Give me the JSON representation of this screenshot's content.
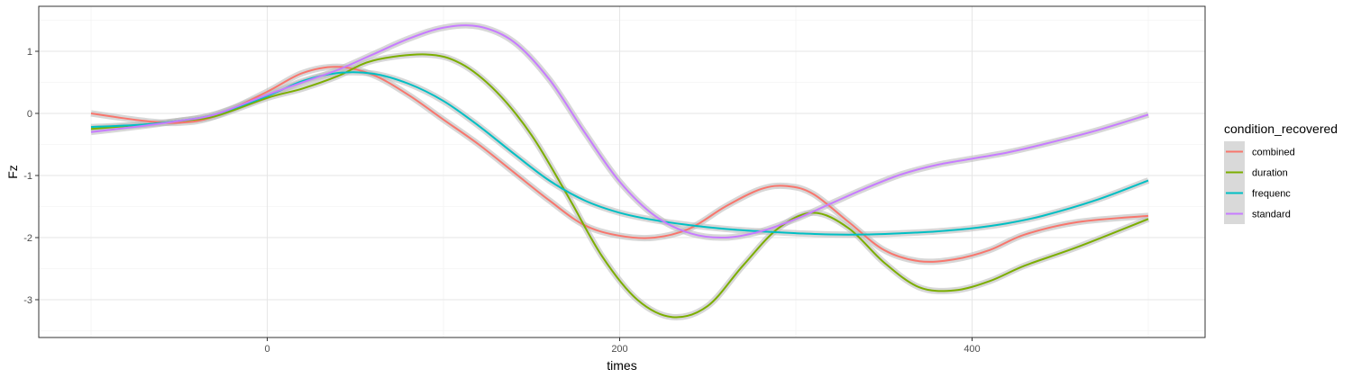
{
  "chart_data": {
    "type": "line",
    "xlabel": "times",
    "ylabel": "Fz",
    "xlim": [
      -130,
      530
    ],
    "ylim": [
      -3.55,
      1.7
    ],
    "x_ticks": [
      0,
      200,
      400
    ],
    "y_ticks": [
      -3,
      -2,
      -1,
      0,
      1
    ],
    "x_tick_labels": [
      "0",
      "200",
      "400"
    ],
    "y_tick_labels": [
      "-3",
      "-2",
      "-1",
      "0",
      "1"
    ],
    "grid": true,
    "legend": {
      "title": "condition_recovered",
      "position": "right"
    },
    "series": [
      {
        "name": "combined",
        "color": "#F8766D",
        "x": [
          -100,
          -70,
          -50,
          -30,
          0,
          20,
          40,
          60,
          80,
          100,
          120,
          140,
          160,
          180,
          200,
          220,
          240,
          260,
          280,
          295,
          310,
          330,
          350,
          370,
          390,
          410,
          430,
          460,
          500
        ],
        "y": [
          0.0,
          -0.12,
          -0.15,
          -0.05,
          0.35,
          0.65,
          0.75,
          0.62,
          0.3,
          -0.1,
          -0.5,
          -0.95,
          -1.4,
          -1.8,
          -1.97,
          -2.0,
          -1.85,
          -1.5,
          -1.22,
          -1.17,
          -1.3,
          -1.75,
          -2.2,
          -2.38,
          -2.35,
          -2.2,
          -1.95,
          -1.75,
          -1.65
        ]
      },
      {
        "name": "duration",
        "color": "#7CAE00",
        "x": [
          -100,
          -70,
          -50,
          -30,
          0,
          20,
          40,
          60,
          90,
          110,
          130,
          150,
          170,
          190,
          210,
          230,
          250,
          270,
          290,
          310,
          330,
          350,
          370,
          390,
          410,
          430,
          460,
          500
        ],
        "y": [
          -0.25,
          -0.18,
          -0.12,
          -0.05,
          0.25,
          0.4,
          0.6,
          0.85,
          0.95,
          0.8,
          0.35,
          -0.35,
          -1.3,
          -2.3,
          -3.0,
          -3.28,
          -3.1,
          -2.45,
          -1.85,
          -1.6,
          -1.85,
          -2.4,
          -2.8,
          -2.85,
          -2.7,
          -2.45,
          -2.15,
          -1.7
        ]
      },
      {
        "name": "frequenc",
        "color": "#00BFC4",
        "x": [
          -100,
          -70,
          -50,
          -30,
          0,
          20,
          40,
          60,
          80,
          100,
          120,
          140,
          160,
          180,
          200,
          220,
          240,
          260,
          280,
          300,
          320,
          340,
          360,
          380,
          400,
          420,
          440,
          470,
          500
        ],
        "y": [
          -0.22,
          -0.18,
          -0.12,
          -0.02,
          0.28,
          0.52,
          0.65,
          0.64,
          0.48,
          0.2,
          -0.2,
          -0.65,
          -1.08,
          -1.4,
          -1.6,
          -1.72,
          -1.8,
          -1.86,
          -1.9,
          -1.93,
          -1.95,
          -1.95,
          -1.93,
          -1.9,
          -1.85,
          -1.77,
          -1.65,
          -1.4,
          -1.08
        ]
      },
      {
        "name": "standard",
        "color": "#C77CFF",
        "x": [
          -100,
          -70,
          -50,
          -30,
          0,
          20,
          40,
          60,
          80,
          100,
          120,
          140,
          160,
          180,
          200,
          220,
          240,
          260,
          280,
          300,
          320,
          340,
          360,
          380,
          400,
          420,
          440,
          470,
          500
        ],
        "y": [
          -0.3,
          -0.2,
          -0.12,
          -0.02,
          0.3,
          0.5,
          0.7,
          0.95,
          1.2,
          1.38,
          1.4,
          1.15,
          0.55,
          -0.3,
          -1.1,
          -1.65,
          -1.93,
          -2.0,
          -1.9,
          -1.7,
          -1.45,
          -1.2,
          -0.98,
          -0.83,
          -0.73,
          -0.63,
          -0.5,
          -0.28,
          -0.02
        ]
      }
    ]
  }
}
